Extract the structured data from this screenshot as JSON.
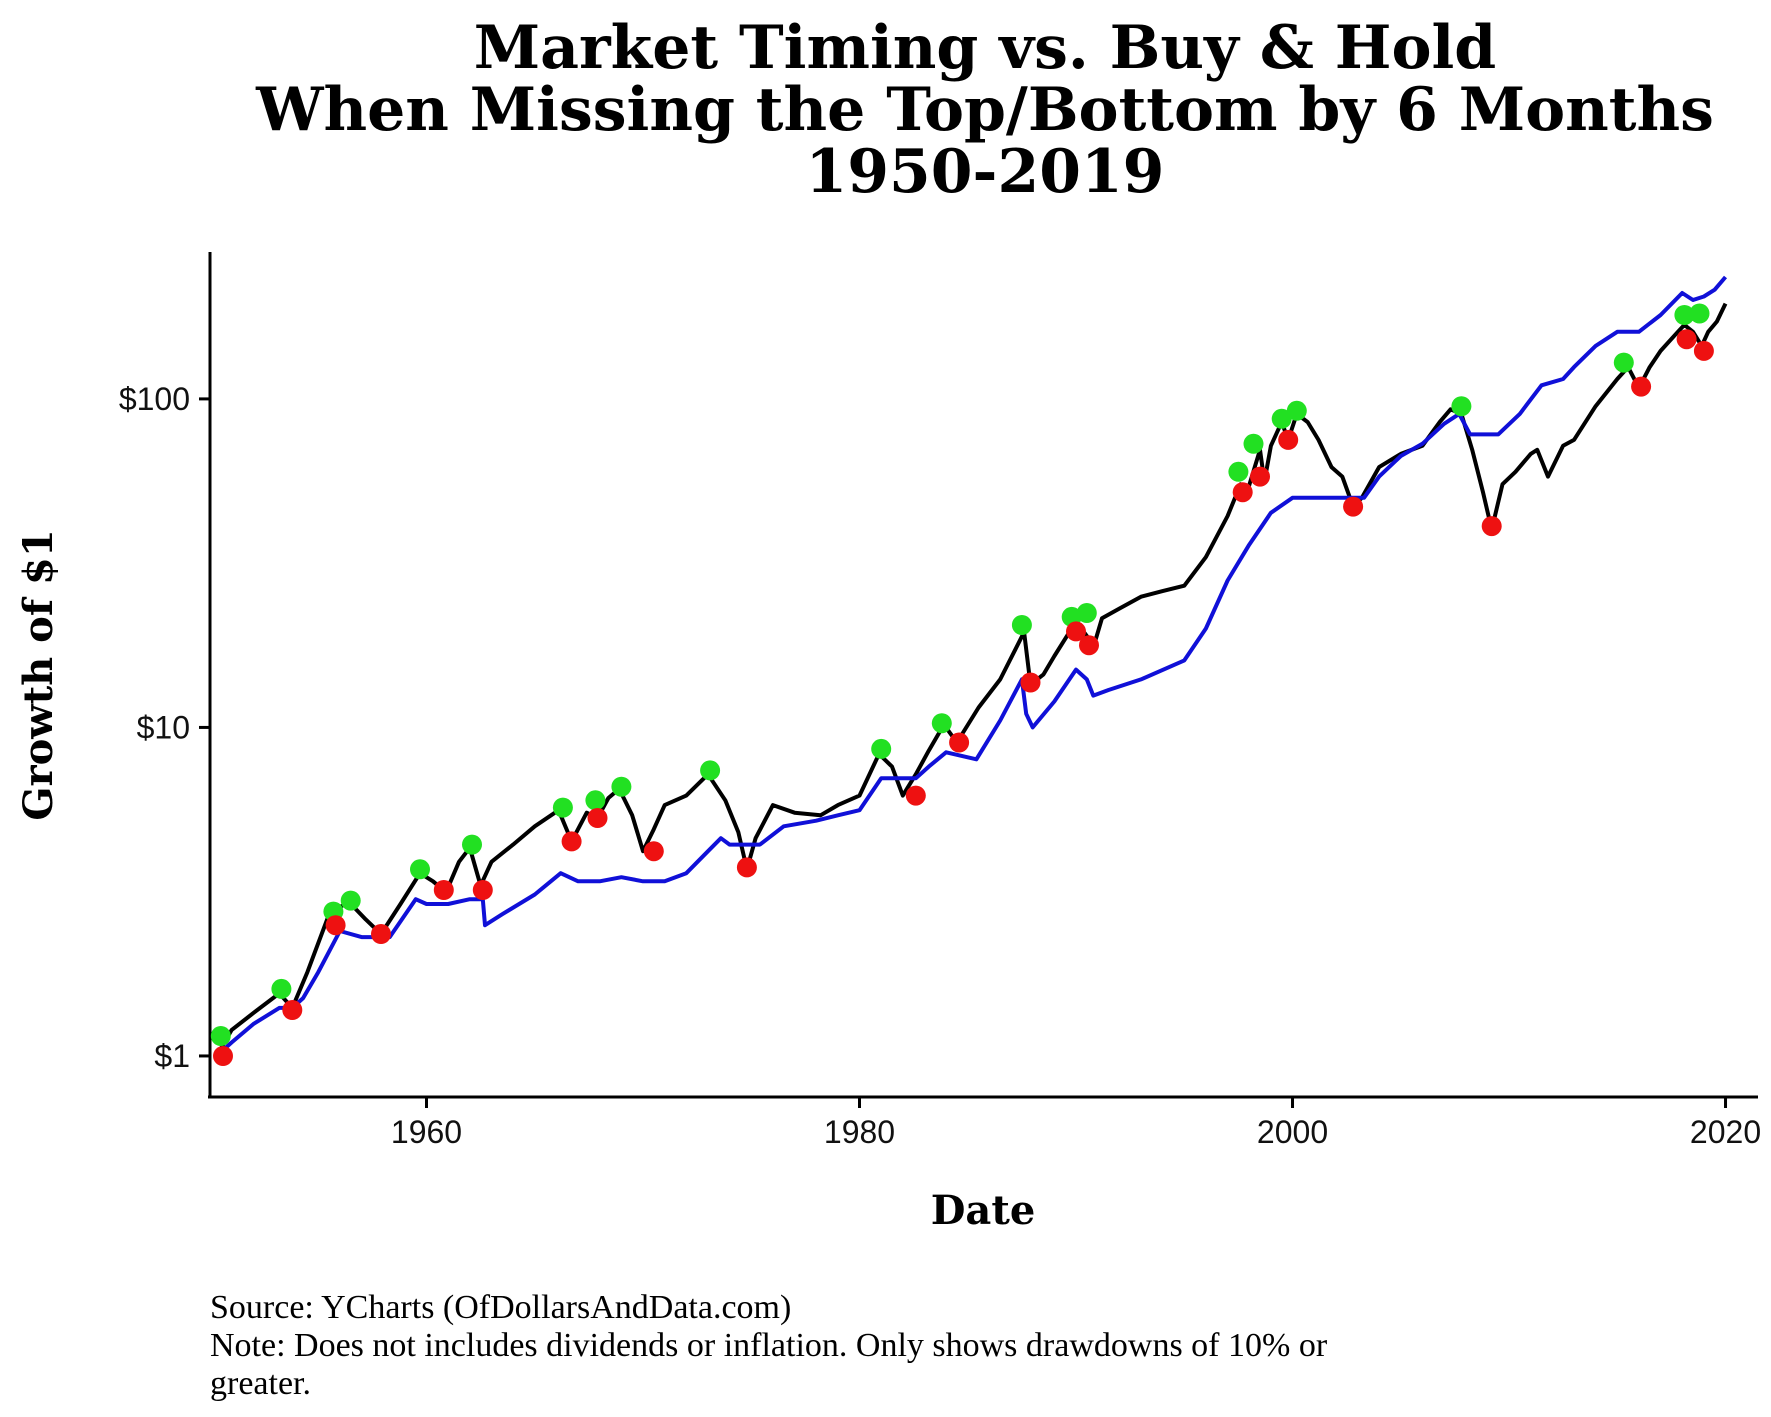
{
  "chart_data": {
    "type": "line",
    "title": [
      "Market Timing vs. Buy & Hold",
      "When Missing the Top/Bottom by 6 Months",
      "1950-2019"
    ],
    "xlabel": "Date",
    "ylabel": "Growth of $1",
    "x_scale": "linear",
    "y_scale": "log",
    "xlim": [
      1950,
      2021.5
    ],
    "ylim": [
      0.75,
      280
    ],
    "x_ticks": [
      1960,
      1980,
      2000,
      2020
    ],
    "x_tick_labels": [
      "1960",
      "1980",
      "2000",
      "2020"
    ],
    "y_ticks": [
      1,
      10,
      100
    ],
    "y_tick_labels": [
      "$1",
      "$10",
      "$100"
    ],
    "grid": false,
    "legend": "none",
    "series": [
      {
        "color": "#000000",
        "x": [
          1950.3,
          1951.0,
          1952.0,
          1953.2,
          1953.8,
          1954.5,
          1955.5,
          1956.4,
          1957.2,
          1957.9,
          1958.8,
          1959.7,
          1960.3,
          1960.9,
          1961.5,
          1962.0,
          1962.5,
          1963.0,
          1964.0,
          1965.0,
          1966.1,
          1966.7,
          1967.4,
          1967.9,
          1968.4,
          1968.9,
          1969.5,
          1970.0,
          1970.5,
          1971.0,
          1972.0,
          1973.0,
          1973.8,
          1974.4,
          1974.8,
          1975.2,
          1976.0,
          1977.0,
          1978.2,
          1979.0,
          1980.0,
          1980.9,
          1981.5,
          1982.0,
          1982.6,
          1983.2,
          1983.9,
          1984.5,
          1985.5,
          1986.5,
          1987.6,
          1987.9,
          1988.5,
          1989.0,
          1990.0,
          1990.5,
          1990.8,
          1991.2,
          1992.0,
          1993.0,
          1994.0,
          1995.0,
          1996.0,
          1997.0,
          1997.6,
          1997.9,
          1998.5,
          1998.7,
          1999.0,
          1999.5,
          1999.8,
          2000.2,
          2000.7,
          2001.2,
          2001.8,
          2002.3,
          2002.8,
          2003.2,
          2004.0,
          2005.0,
          2006.0,
          2006.8,
          2007.3,
          2007.8,
          2008.3,
          2008.8,
          2009.2,
          2009.7,
          2010.3,
          2011.0,
          2011.3,
          2011.8,
          2012.5,
          2013.0,
          2014.0,
          2015.0,
          2015.5,
          2016.0,
          2016.5,
          2017.0,
          2017.8,
          2018.1,
          2018.5,
          2018.9,
          2019.2,
          2019.6,
          2020.0
        ],
        "y": [
          1.0,
          1.2,
          1.35,
          1.55,
          1.4,
          1.8,
          2.7,
          2.95,
          2.6,
          2.35,
          2.9,
          3.6,
          3.4,
          3.15,
          3.9,
          4.3,
          3.3,
          3.9,
          4.4,
          5.0,
          5.6,
          4.5,
          5.5,
          5.3,
          6.1,
          6.5,
          5.4,
          4.2,
          4.9,
          5.8,
          6.2,
          7.2,
          6.0,
          4.8,
          3.7,
          4.6,
          5.8,
          5.5,
          5.4,
          5.8,
          6.2,
          8.3,
          7.6,
          6.2,
          7.2,
          8.5,
          10.2,
          9.0,
          11.5,
          14.0,
          19.5,
          13.5,
          14.5,
          16.5,
          21.0,
          19.0,
          17.5,
          21.5,
          23.0,
          25.0,
          26.0,
          27.0,
          33.0,
          44.0,
          55.0,
          52.0,
          70.0,
          56.0,
          72.0,
          85.0,
          75.0,
          90.0,
          85.0,
          75.0,
          62.0,
          58.0,
          47.0,
          50.0,
          62.0,
          68.0,
          72.0,
          85.0,
          93.0,
          90.0,
          70.0,
          52.0,
          40.0,
          55.0,
          60.0,
          68.0,
          70.0,
          58.0,
          72.0,
          75.0,
          95.0,
          115.0,
          125.0,
          108.0,
          125.0,
          140.0,
          160.0,
          168.0,
          160.0,
          145.0,
          160.0,
          172.0,
          195.0
        ]
      },
      {
        "color": "#1010d8",
        "x": [
          1950.3,
          1951.0,
          1952.0,
          1953.2,
          1953.8,
          1954.3,
          1955.0,
          1956.0,
          1957.0,
          1958.3,
          1959.5,
          1960.0,
          1961.0,
          1962.0,
          1962.6,
          1962.7,
          1963.5,
          1965.0,
          1966.2,
          1967.0,
          1968.0,
          1969.0,
          1970.0,
          1971.0,
          1972.0,
          1973.0,
          1973.6,
          1974.0,
          1975.4,
          1976.5,
          1978.0,
          1979.0,
          1980.0,
          1981.0,
          1982.6,
          1983.2,
          1984.0,
          1985.4,
          1986.5,
          1987.5,
          1987.7,
          1988.0,
          1989.0,
          1990.0,
          1990.5,
          1990.8,
          1991.5,
          1993.0,
          1995.0,
          1996.0,
          1997.0,
          1998.0,
          1999.0,
          2000.0,
          2001.0,
          2002.0,
          2003.3,
          2004.0,
          2005.0,
          2006.0,
          2007.0,
          2007.7,
          2008.2,
          2009.5,
          2010.5,
          2011.5,
          2012.5,
          2013.0,
          2014.0,
          2015.0,
          2015.5,
          2016.0,
          2017.0,
          2018.0,
          2018.5,
          2019.0,
          2019.5,
          2020.0
        ],
        "y": [
          1.0,
          1.1,
          1.25,
          1.4,
          1.4,
          1.5,
          1.8,
          2.4,
          2.3,
          2.3,
          3.0,
          2.9,
          2.9,
          3.0,
          3.0,
          2.5,
          2.7,
          3.1,
          3.6,
          3.4,
          3.4,
          3.5,
          3.4,
          3.4,
          3.6,
          4.2,
          4.6,
          4.4,
          4.4,
          5.0,
          5.2,
          5.4,
          5.6,
          7.0,
          7.0,
          7.6,
          8.4,
          8.0,
          10.5,
          14.0,
          11.0,
          10.0,
          12.0,
          15.0,
          14.0,
          12.5,
          13.0,
          14.0,
          16.0,
          20.0,
          28.0,
          36.0,
          45.0,
          50.0,
          50.0,
          50.0,
          50.0,
          58.0,
          67.0,
          73.0,
          84.0,
          90.0,
          78.0,
          78.0,
          90.0,
          110.0,
          115.0,
          125.0,
          145.0,
          160.0,
          160.0,
          160.0,
          180.0,
          210.0,
          200.0,
          205.0,
          215.0,
          235.0
        ]
      }
    ],
    "markers": [
      {
        "color": "#22e022",
        "x": [
          1950.5,
          1953.3,
          1955.7,
          1956.5,
          1959.7,
          1962.1,
          1966.3,
          1967.8,
          1969.0,
          1973.1,
          1981.0,
          1983.8,
          1987.5,
          1989.8,
          1990.5,
          1997.5,
          1998.2,
          1999.5,
          2000.2,
          2007.8,
          2015.3,
          2018.1,
          2018.8
        ],
        "y": [
          1.15,
          1.6,
          2.75,
          2.97,
          3.7,
          4.4,
          5.7,
          6.0,
          6.6,
          7.4,
          8.6,
          10.3,
          20.5,
          21.7,
          22.3,
          60.0,
          73.0,
          87.0,
          92.0,
          95.0,
          129.0,
          180.0,
          182.0
        ]
      },
      {
        "color": "#ee1111",
        "x": [
          1950.6,
          1953.8,
          1955.8,
          1957.9,
          1960.8,
          1962.6,
          1966.7,
          1967.9,
          1970.5,
          1974.8,
          1982.6,
          1984.6,
          1987.9,
          1990.0,
          1990.6,
          1997.7,
          1998.5,
          1999.8,
          2002.8,
          2009.2,
          2016.1,
          2018.2,
          2019.0
        ],
        "y": [
          1.0,
          1.38,
          2.5,
          2.35,
          3.2,
          3.2,
          4.5,
          5.3,
          4.2,
          3.75,
          6.2,
          9.0,
          13.7,
          19.6,
          17.8,
          52.0,
          58.0,
          75.0,
          47.0,
          41.0,
          109.0,
          152.0,
          140.0
        ]
      }
    ]
  },
  "footer": {
    "lines": [
      "Source: YCharts (OfDollarsAndData.com)",
      "Note: Does not includes dividends or inflation. Only shows drawdowns of 10% or",
      "greater."
    ]
  }
}
